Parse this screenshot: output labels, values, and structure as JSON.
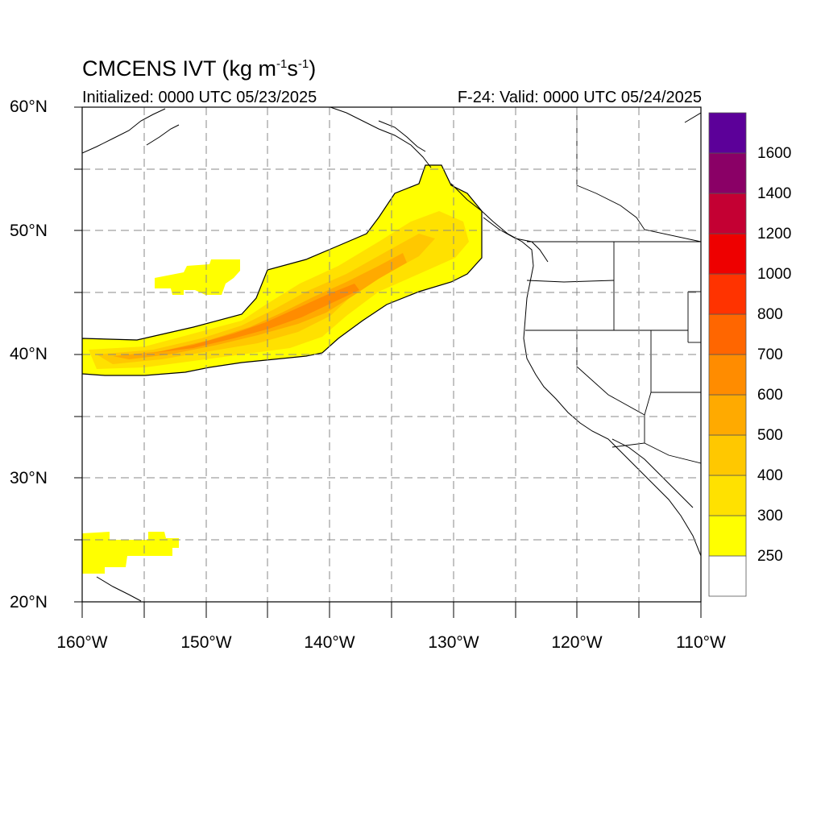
{
  "title": {
    "main": "CMCENS IVT (kg m",
    "unit_exp1": "-1",
    "unit_mid": "s",
    "unit_exp2": "-1",
    "unit_end": ")"
  },
  "subtitle_left": "Initialized: 0000 UTC 05/23/2025",
  "subtitle_right": "F-24: Valid: 0000 UTC 05/24/2025",
  "map": {
    "lon_range": [
      -160,
      -110
    ],
    "lat_range": [
      20,
      60
    ],
    "lat_ticks": [
      "60°N",
      "50°N",
      "40°N",
      "30°N",
      "20°N"
    ],
    "lon_ticks": [
      "160°W",
      "150°W",
      "140°W",
      "130°W",
      "120°W",
      "110°W"
    ],
    "gridlines": "dashed every 5°"
  },
  "colorbar": {
    "labels": [
      "1600",
      "1400",
      "1200",
      "1000",
      "800",
      "700",
      "600",
      "500",
      "400",
      "300",
      "250"
    ],
    "colors": [
      "#ffffff",
      "#ffff00",
      "#ffe100",
      "#ffc800",
      "#ffaa00",
      "#ff8c00",
      "#ff6600",
      "#ff3300",
      "#ee0000",
      "#c40033",
      "#8a0066",
      "#5c0099"
    ]
  }
}
